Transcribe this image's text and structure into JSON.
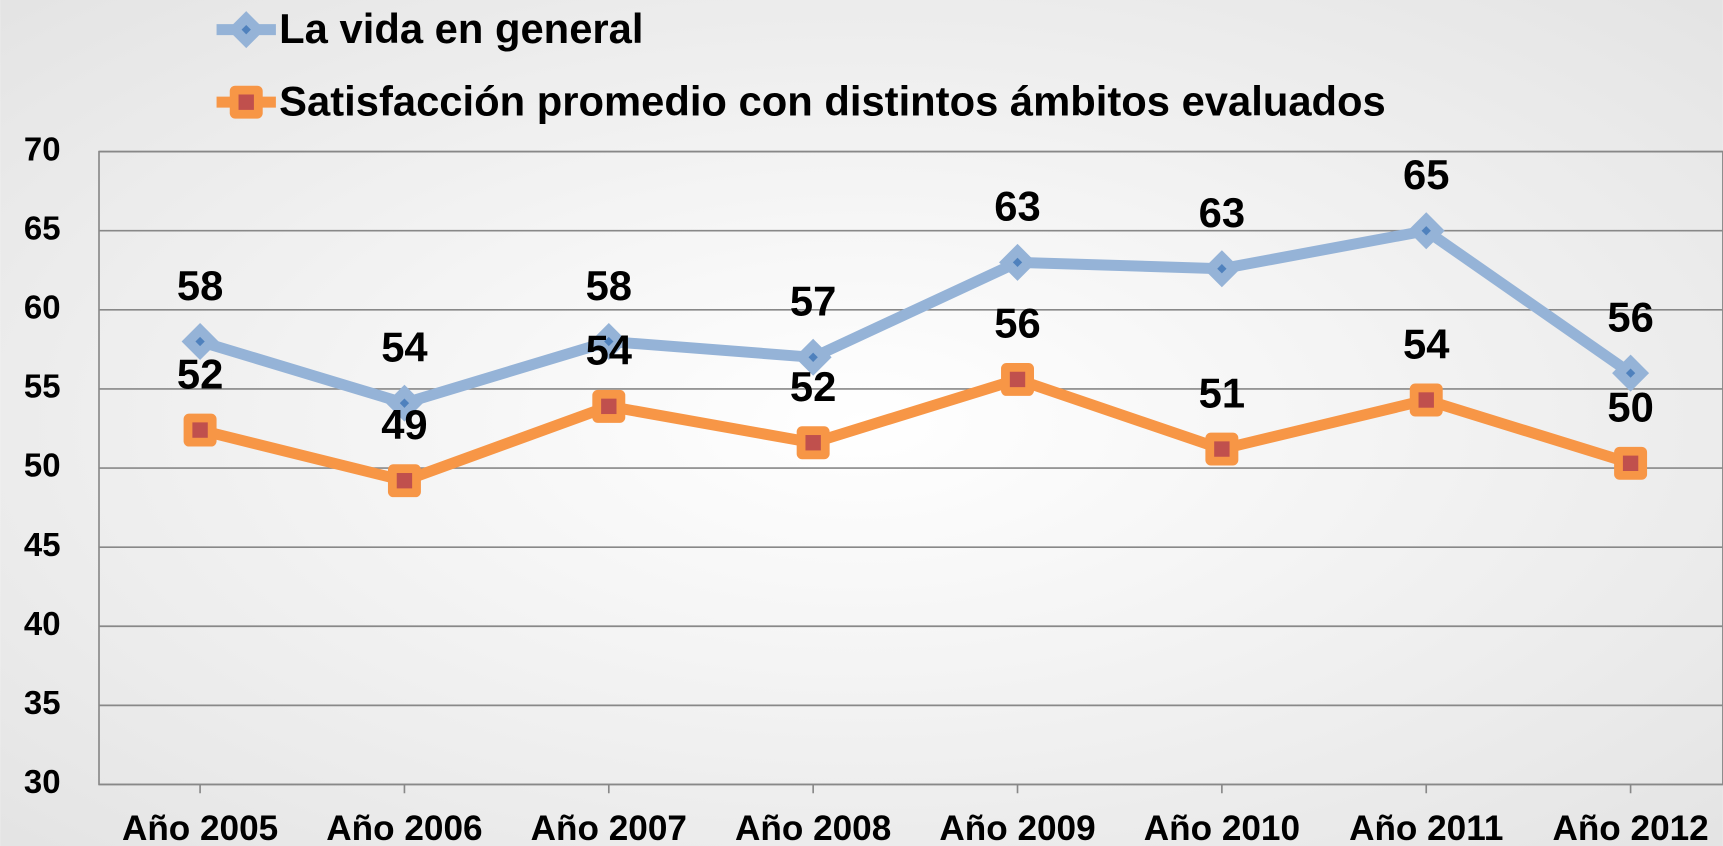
{
  "chart_data": {
    "type": "line",
    "categories": [
      "Año 2005",
      "Año 2006",
      "Año 2007",
      "Año 2008",
      "Año 2009",
      "Año 2010",
      "Año 2011",
      "Año 2012"
    ],
    "series": [
      {
        "name": "La vida en general",
        "color": "#95b3d7",
        "marker": "diamond",
        "marker_color": "#4f81bd",
        "values": [
          58,
          54.1,
          58,
          57,
          63,
          62.6,
          65,
          56
        ],
        "value_labels": [
          "58",
          "54",
          "58",
          "57",
          "63",
          "63",
          "65",
          "56"
        ]
      },
      {
        "name": "Satisfacción promedio con distintos ámbitos evaluados",
        "color": "#f79646",
        "marker": "square",
        "marker_color": "#c0504d",
        "values": [
          52.4,
          49.2,
          53.9,
          51.6,
          55.6,
          51.2,
          54.3,
          50.3
        ],
        "value_labels": [
          "52",
          "49",
          "54",
          "52",
          "56",
          "51",
          "54",
          "50"
        ]
      }
    ],
    "ylim": [
      30,
      70
    ],
    "yticks": [
      30,
      35,
      40,
      45,
      50,
      55,
      60,
      65,
      70
    ],
    "grid": true
  }
}
